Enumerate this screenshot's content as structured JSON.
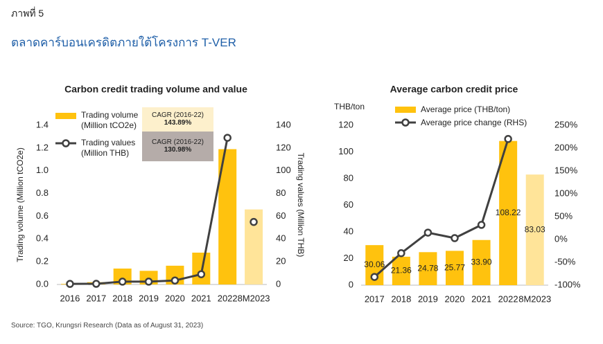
{
  "header": {
    "label": "ภาพที่ 5",
    "title": "ตลาดคาร์บอนเครดิตภายใต้โครงการ T-VER"
  },
  "source": "Source: TGO, Krungsri Research (Data as of August 31, 2023)",
  "chart_data": [
    {
      "type": "combo",
      "title": "Carbon credit trading volume and value",
      "categories": [
        "2016",
        "2017",
        "2018",
        "2019",
        "2020",
        "2021",
        "2022",
        "8M2023"
      ],
      "series": [
        {
          "name": "Trading volume (Million tCO2e)",
          "type": "bar",
          "colors": [
            "#ffc20e",
            "#ffc20e",
            "#ffc20e",
            "#ffc20e",
            "#ffc20e",
            "#ffc20e",
            "#ffc20e",
            "#ffe499"
          ],
          "values": [
            0.005,
            0.02,
            0.14,
            0.12,
            0.165,
            0.28,
            1.19,
            0.66
          ]
        },
        {
          "name": "Trading values (Million THB)",
          "type": "line",
          "axis": "y2",
          "color": "#404040",
          "values": [
            0.5,
            0.6,
            2.5,
            2.5,
            3.5,
            9,
            129,
            55
          ]
        }
      ],
      "ylabel": "Trading volume (Million tCO2e)",
      "y2label": "Trading values (Million THB)",
      "ylim": [
        0,
        1.4
      ],
      "yticks": [
        {
          "value": 0,
          "label": "0.0"
        },
        0.2,
        0.4,
        0.6,
        0.8,
        {
          "value": 1,
          "label": "1.0"
        },
        1.2,
        1.4
      ],
      "y2lim": [
        0,
        140
      ],
      "y2ticks": [
        0,
        20,
        40,
        60,
        80,
        100,
        120,
        140
      ],
      "annotations": [
        {
          "label": "CAGR (2016-22)",
          "value": 143.89,
          "value_label": "143.89%",
          "color": "#fdf0cc"
        },
        {
          "label": "CAGR (2016-22)",
          "value": 130.98,
          "value_label": "130.98%",
          "color": "#b5aca9"
        }
      ]
    },
    {
      "type": "combo",
      "title": "Average carbon credit price",
      "categories": [
        "2017",
        "2018",
        "2019",
        "2020",
        "2021",
        "2022",
        "8M2023"
      ],
      "series": [
        {
          "name": "Average price (THB/ton)",
          "type": "bar",
          "colors": [
            "#ffc20e",
            "#ffc20e",
            "#ffc20e",
            "#ffc20e",
            "#ffc20e",
            "#ffc20e",
            "#ffe499"
          ],
          "values": [
            30.06,
            21.36,
            24.78,
            25.77,
            33.9,
            108.22,
            83.03
          ],
          "value_labels": [
            "30.06",
            "21.36",
            "24.78",
            "25.77",
            "33.90",
            "108.22",
            "83.03"
          ]
        },
        {
          "name": "Average price change (RHS)",
          "type": "line",
          "axis": "y2",
          "color": "#404040",
          "values": [
            -82,
            -30,
            15,
            3,
            32,
            220,
            null
          ]
        }
      ],
      "yunit": "THB/ton",
      "ylim": [
        0,
        120
      ],
      "yticks": [
        0,
        20,
        40,
        60,
        80,
        100,
        120
      ],
      "y2lim": [
        -100,
        250
      ],
      "y2ticks": [
        {
          "value": -100,
          "label": "-100%"
        },
        {
          "value": -50,
          "label": "-50%"
        },
        {
          "value": 0,
          "label": "0%"
        },
        {
          "value": 50,
          "label": "50%"
        },
        {
          "value": 100,
          "label": "100%"
        },
        {
          "value": 150,
          "label": "150%"
        },
        {
          "value": 200,
          "label": "200%"
        },
        {
          "value": 250,
          "label": "250%"
        }
      ]
    }
  ]
}
